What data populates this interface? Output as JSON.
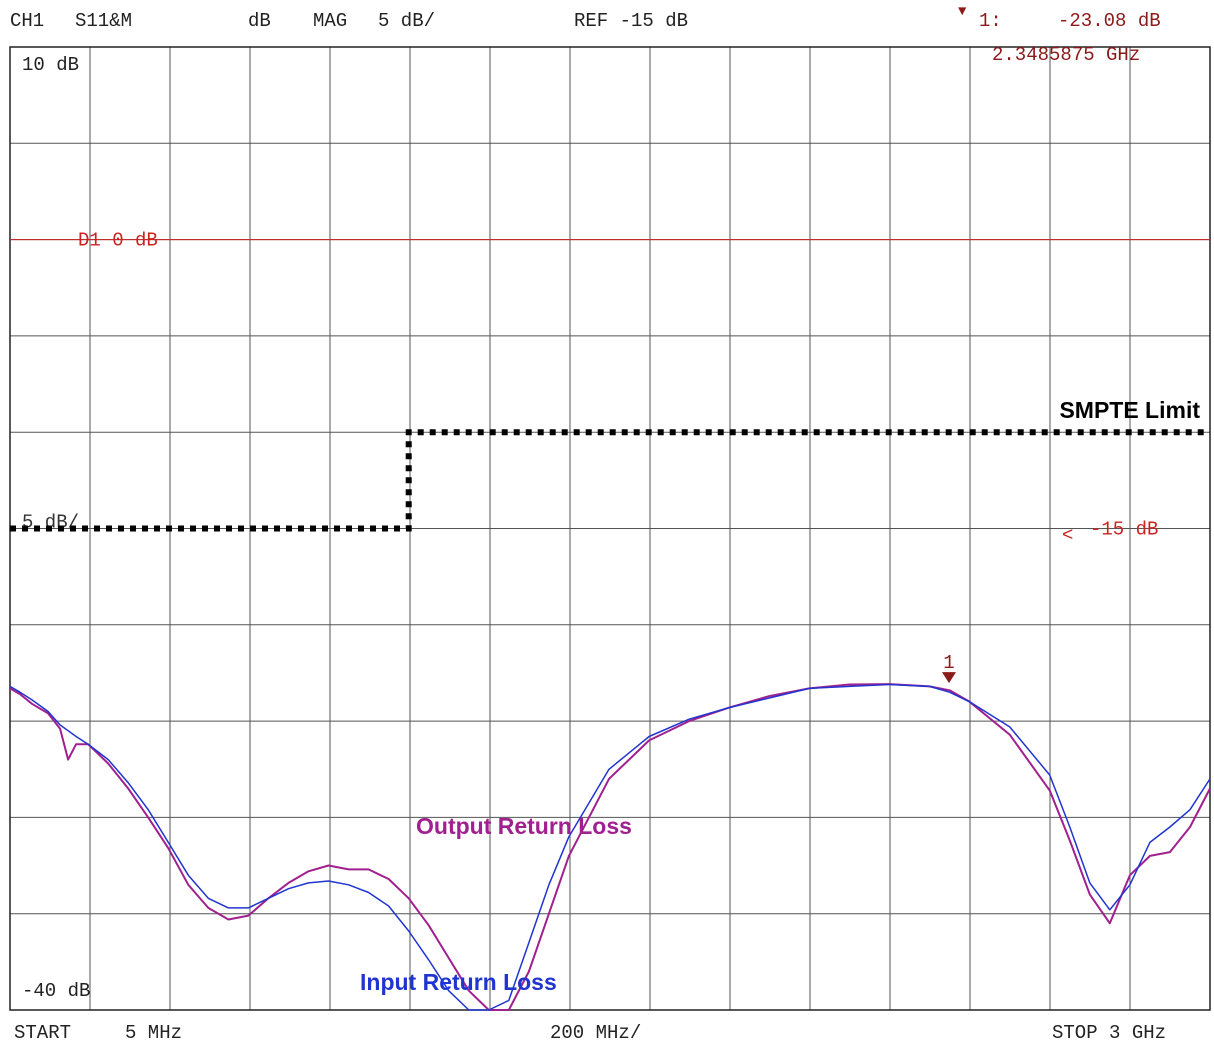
{
  "header": {
    "channel": "CH1",
    "param": "S11&M",
    "unit": "dB",
    "format": "MAG",
    "scale": "5 dB/",
    "ref": "REF -15 dB",
    "marker_label": "1:",
    "marker_value": "-23.08 dB",
    "marker_freq": "2.3485875 GHz"
  },
  "footer": {
    "start_label": "START",
    "start_value": "5 MHz",
    "per_div": "200 MHz/",
    "stop": "STOP 3 GHz"
  },
  "colors": {
    "grid": "#555555",
    "display_line": "#cc2222",
    "marker": "#8b1a1a",
    "output_trace": "#a0208f",
    "input_trace": "#2035d0",
    "limit": "#000000"
  },
  "chart_data": {
    "type": "line",
    "title": "",
    "xlabel": "",
    "ylabel": "",
    "xlim": [
      5,
      3000
    ],
    "ylim": [
      -40,
      10
    ],
    "x_unit": "MHz",
    "y_unit": "dB",
    "grid": true,
    "annotations": {
      "top_label": "10 dB",
      "bottom_label": "-40 dB",
      "scale_label": "5 dB/",
      "display_line_label": "D1 0 dB",
      "ref_label": "-15 dB",
      "ref_arrow": "<",
      "marker_number": "1"
    },
    "display_line": {
      "y": 0
    },
    "marker": {
      "x": 2348.6,
      "y": -23.08
    },
    "limit_line": {
      "name": "SMPTE Limit",
      "points": [
        [
          5,
          -15
        ],
        [
          1000,
          -15
        ],
        [
          1000,
          -10
        ],
        [
          3000,
          -10
        ]
      ]
    },
    "series": [
      {
        "name": "Output Return Loss",
        "x": [
          5,
          30,
          60,
          100,
          130,
          150,
          170,
          200,
          250,
          300,
          350,
          400,
          450,
          500,
          550,
          600,
          650,
          700,
          750,
          800,
          850,
          900,
          950,
          1000,
          1050,
          1100,
          1150,
          1200,
          1250,
          1300,
          1350,
          1400,
          1500,
          1600,
          1700,
          1800,
          1900,
          2000,
          2100,
          2200,
          2300,
          2350,
          2400,
          2500,
          2600,
          2650,
          2700,
          2750,
          2800,
          2850,
          2900,
          2950,
          3000
        ],
        "y": [
          -23.3,
          -23.6,
          -24.1,
          -24.6,
          -25.4,
          -27.0,
          -26.2,
          -26.2,
          -27.2,
          -28.5,
          -30.0,
          -31.6,
          -33.5,
          -34.7,
          -35.3,
          -35.1,
          -34.2,
          -33.4,
          -32.8,
          -32.5,
          -32.7,
          -32.7,
          -33.2,
          -34.2,
          -35.6,
          -37.3,
          -39.0,
          -40.0,
          -40.0,
          -38.0,
          -35.0,
          -32.0,
          -28.0,
          -26.0,
          -25.0,
          -24.3,
          -23.7,
          -23.3,
          -23.1,
          -23.08,
          -23.2,
          -23.4,
          -24.0,
          -25.7,
          -28.6,
          -31.2,
          -34.0,
          -35.5,
          -33.0,
          -32.0,
          -31.8,
          -30.5,
          -28.5
        ]
      },
      {
        "name": "Input Return Loss",
        "x": [
          5,
          30,
          60,
          100,
          130,
          150,
          170,
          200,
          250,
          300,
          350,
          400,
          450,
          500,
          550,
          600,
          650,
          700,
          750,
          800,
          850,
          900,
          950,
          1000,
          1050,
          1100,
          1150,
          1200,
          1250,
          1300,
          1350,
          1400,
          1500,
          1600,
          1700,
          1800,
          1900,
          2000,
          2100,
          2200,
          2300,
          2350,
          2400,
          2500,
          2600,
          2650,
          2700,
          2750,
          2800,
          2850,
          2900,
          2950,
          3000
        ],
        "y": [
          -23.2,
          -23.5,
          -23.9,
          -24.5,
          -25.2,
          -25.5,
          -25.8,
          -26.2,
          -27.0,
          -28.2,
          -29.6,
          -31.3,
          -33.0,
          -34.2,
          -34.7,
          -34.7,
          -34.2,
          -33.7,
          -33.4,
          -33.3,
          -33.5,
          -33.9,
          -34.6,
          -35.9,
          -37.4,
          -39.0,
          -40.0,
          -40.0,
          -39.5,
          -36.5,
          -33.5,
          -31.0,
          -27.5,
          -25.8,
          -24.9,
          -24.3,
          -23.8,
          -23.3,
          -23.2,
          -23.1,
          -23.2,
          -23.5,
          -24.0,
          -25.3,
          -27.8,
          -30.5,
          -33.4,
          -34.8,
          -33.5,
          -31.3,
          -30.5,
          -29.6,
          -28.0
        ]
      }
    ]
  }
}
